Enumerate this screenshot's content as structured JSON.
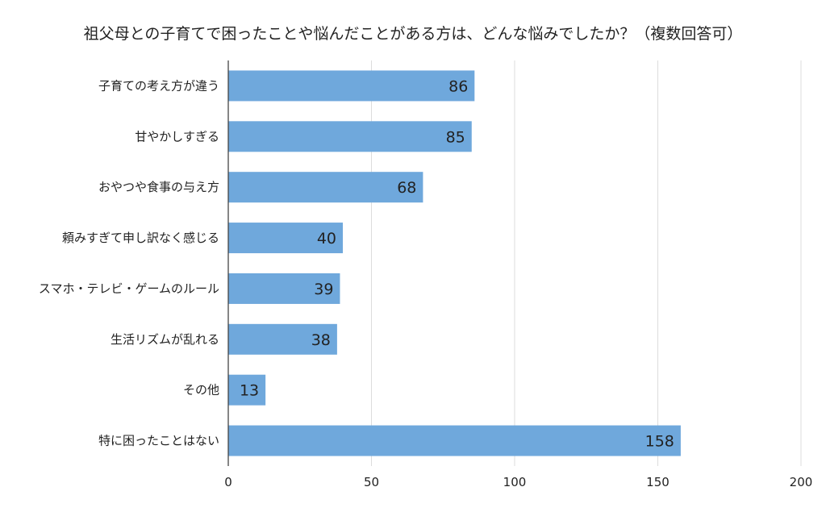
{
  "chart_data": {
    "type": "bar",
    "orientation": "horizontal",
    "title": "祖父母との子育てで困ったことや悩んだことがある方は、どんな悩みでしたか？（複数回答可）",
    "categories": [
      "子育ての考え方が違う",
      "甘やかしすぎる",
      "おやつや食事の与え方",
      "頼みすぎて申し訳なく感じる",
      "スマホ・テレビ・ゲームのルール",
      "生活リズムが乱れる",
      "その他",
      "特に困ったことはない"
    ],
    "values": [
      86,
      85,
      68,
      40,
      39,
      38,
      13,
      158
    ],
    "value_labels": [
      "86",
      "85",
      "68",
      "40",
      "39",
      "38",
      "13",
      "158"
    ],
    "xlim": [
      0,
      200
    ],
    "ticks": [
      0,
      50,
      100,
      150,
      200
    ],
    "tick_labels": [
      "0",
      "50",
      "100",
      "150",
      "200"
    ],
    "bar_color": "#6fa8dc",
    "grid": true,
    "legend": "none"
  }
}
